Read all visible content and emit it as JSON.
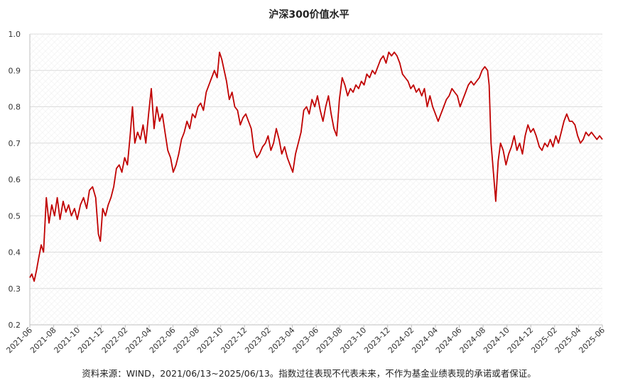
{
  "chart_data": {
    "type": "line",
    "title": "沪深300价值水平",
    "xlabel": "",
    "ylabel": "",
    "ylim": [
      0.2,
      1.0
    ],
    "yticks": [
      "0.2",
      "0.3",
      "0.4",
      "0.5",
      "0.6",
      "0.7",
      "0.8",
      "0.9",
      "1.0"
    ],
    "xlim": [
      "2021-06-13",
      "2025-06-13"
    ],
    "xticks": [
      "2021-06",
      "2021-08",
      "2021-10",
      "2021-12",
      "2022-02",
      "2022-04",
      "2022-06",
      "2022-08",
      "2022-10",
      "2022-12",
      "2023-02",
      "2023-04",
      "2023-06",
      "2023-08",
      "2023-10",
      "2023-12",
      "2024-02",
      "2024-04",
      "2024-06",
      "2024-08",
      "2024-10",
      "2024-12",
      "2025-02",
      "2025-04",
      "2025-06"
    ],
    "grid": true,
    "legend": "none",
    "line_color": "#c00000",
    "series": [
      {
        "points": [
          [
            "2021-06-13",
            0.33
          ],
          [
            "2021-06-18",
            0.34
          ],
          [
            "2021-06-24",
            0.32
          ],
          [
            "2021-06-30",
            0.35
          ],
          [
            "2021-07-05",
            0.38
          ],
          [
            "2021-07-12",
            0.42
          ],
          [
            "2021-07-18",
            0.4
          ],
          [
            "2021-07-25",
            0.55
          ],
          [
            "2021-08-01",
            0.48
          ],
          [
            "2021-08-08",
            0.53
          ],
          [
            "2021-08-15",
            0.5
          ],
          [
            "2021-08-22",
            0.55
          ],
          [
            "2021-08-29",
            0.49
          ],
          [
            "2021-09-06",
            0.54
          ],
          [
            "2021-09-13",
            0.51
          ],
          [
            "2021-09-20",
            0.53
          ],
          [
            "2021-09-27",
            0.5
          ],
          [
            "2021-10-05",
            0.52
          ],
          [
            "2021-10-12",
            0.49
          ],
          [
            "2021-10-20",
            0.53
          ],
          [
            "2021-10-28",
            0.55
          ],
          [
            "2021-11-05",
            0.52
          ],
          [
            "2021-11-12",
            0.57
          ],
          [
            "2021-11-20",
            0.58
          ],
          [
            "2021-11-28",
            0.55
          ],
          [
            "2021-12-05",
            0.45
          ],
          [
            "2021-12-10",
            0.43
          ],
          [
            "2021-12-16",
            0.52
          ],
          [
            "2021-12-23",
            0.5
          ],
          [
            "2021-12-30",
            0.53
          ],
          [
            "2022-01-06",
            0.55
          ],
          [
            "2022-01-13",
            0.58
          ],
          [
            "2022-01-20",
            0.63
          ],
          [
            "2022-01-27",
            0.64
          ],
          [
            "2022-02-03",
            0.62
          ],
          [
            "2022-02-10",
            0.66
          ],
          [
            "2022-02-17",
            0.64
          ],
          [
            "2022-02-24",
            0.72
          ],
          [
            "2022-03-02",
            0.8
          ],
          [
            "2022-03-08",
            0.7
          ],
          [
            "2022-03-15",
            0.73
          ],
          [
            "2022-03-22",
            0.71
          ],
          [
            "2022-03-29",
            0.75
          ],
          [
            "2022-04-05",
            0.7
          ],
          [
            "2022-04-12",
            0.78
          ],
          [
            "2022-04-19",
            0.85
          ],
          [
            "2022-04-26",
            0.74
          ],
          [
            "2022-05-03",
            0.8
          ],
          [
            "2022-05-10",
            0.76
          ],
          [
            "2022-05-17",
            0.78
          ],
          [
            "2022-05-24",
            0.73
          ],
          [
            "2022-05-31",
            0.68
          ],
          [
            "2022-06-07",
            0.66
          ],
          [
            "2022-06-14",
            0.62
          ],
          [
            "2022-06-21",
            0.64
          ],
          [
            "2022-06-28",
            0.67
          ],
          [
            "2022-07-05",
            0.71
          ],
          [
            "2022-07-12",
            0.73
          ],
          [
            "2022-07-19",
            0.76
          ],
          [
            "2022-07-26",
            0.74
          ],
          [
            "2022-08-02",
            0.78
          ],
          [
            "2022-08-09",
            0.77
          ],
          [
            "2022-08-16",
            0.8
          ],
          [
            "2022-08-23",
            0.81
          ],
          [
            "2022-08-30",
            0.79
          ],
          [
            "2022-09-06",
            0.84
          ],
          [
            "2022-09-13",
            0.86
          ],
          [
            "2022-09-20",
            0.88
          ],
          [
            "2022-09-27",
            0.9
          ],
          [
            "2022-10-04",
            0.88
          ],
          [
            "2022-10-10",
            0.95
          ],
          [
            "2022-10-16",
            0.93
          ],
          [
            "2022-10-22",
            0.9
          ],
          [
            "2022-10-28",
            0.87
          ],
          [
            "2022-11-04",
            0.82
          ],
          [
            "2022-11-11",
            0.84
          ],
          [
            "2022-11-18",
            0.8
          ],
          [
            "2022-11-25",
            0.79
          ],
          [
            "2022-12-02",
            0.75
          ],
          [
            "2022-12-09",
            0.77
          ],
          [
            "2022-12-16",
            0.78
          ],
          [
            "2022-12-23",
            0.76
          ],
          [
            "2022-12-30",
            0.74
          ],
          [
            "2023-01-06",
            0.68
          ],
          [
            "2023-01-13",
            0.66
          ],
          [
            "2023-01-20",
            0.67
          ],
          [
            "2023-01-28",
            0.69
          ],
          [
            "2023-02-04",
            0.7
          ],
          [
            "2023-02-11",
            0.72
          ],
          [
            "2023-02-18",
            0.68
          ],
          [
            "2023-02-25",
            0.7
          ],
          [
            "2023-03-04",
            0.74
          ],
          [
            "2023-03-11",
            0.71
          ],
          [
            "2023-03-18",
            0.67
          ],
          [
            "2023-03-25",
            0.69
          ],
          [
            "2023-04-01",
            0.66
          ],
          [
            "2023-04-08",
            0.64
          ],
          [
            "2023-04-15",
            0.62
          ],
          [
            "2023-04-22",
            0.67
          ],
          [
            "2023-04-29",
            0.7
          ],
          [
            "2023-05-06",
            0.73
          ],
          [
            "2023-05-13",
            0.79
          ],
          [
            "2023-05-20",
            0.8
          ],
          [
            "2023-05-27",
            0.78
          ],
          [
            "2023-06-03",
            0.82
          ],
          [
            "2023-06-10",
            0.8
          ],
          [
            "2023-06-17",
            0.83
          ],
          [
            "2023-06-24",
            0.79
          ],
          [
            "2023-07-01",
            0.76
          ],
          [
            "2023-07-08",
            0.8
          ],
          [
            "2023-07-15",
            0.83
          ],
          [
            "2023-07-22",
            0.78
          ],
          [
            "2023-07-29",
            0.74
          ],
          [
            "2023-08-05",
            0.72
          ],
          [
            "2023-08-12",
            0.82
          ],
          [
            "2023-08-19",
            0.88
          ],
          [
            "2023-08-26",
            0.86
          ],
          [
            "2023-09-02",
            0.83
          ],
          [
            "2023-09-09",
            0.85
          ],
          [
            "2023-09-16",
            0.84
          ],
          [
            "2023-09-23",
            0.86
          ],
          [
            "2023-09-30",
            0.85
          ],
          [
            "2023-10-07",
            0.87
          ],
          [
            "2023-10-14",
            0.86
          ],
          [
            "2023-10-21",
            0.89
          ],
          [
            "2023-10-28",
            0.88
          ],
          [
            "2023-11-04",
            0.9
          ],
          [
            "2023-11-11",
            0.89
          ],
          [
            "2023-11-18",
            0.91
          ],
          [
            "2023-11-25",
            0.93
          ],
          [
            "2023-12-02",
            0.94
          ],
          [
            "2023-12-09",
            0.92
          ],
          [
            "2023-12-16",
            0.95
          ],
          [
            "2023-12-23",
            0.94
          ],
          [
            "2023-12-30",
            0.95
          ],
          [
            "2024-01-06",
            0.94
          ],
          [
            "2024-01-13",
            0.92
          ],
          [
            "2024-01-20",
            0.89
          ],
          [
            "2024-01-27",
            0.88
          ],
          [
            "2024-02-03",
            0.87
          ],
          [
            "2024-02-10",
            0.85
          ],
          [
            "2024-02-17",
            0.86
          ],
          [
            "2024-02-24",
            0.84
          ],
          [
            "2024-03-02",
            0.85
          ],
          [
            "2024-03-09",
            0.83
          ],
          [
            "2024-03-16",
            0.85
          ],
          [
            "2024-03-23",
            0.8
          ],
          [
            "2024-03-30",
            0.83
          ],
          [
            "2024-04-06",
            0.8
          ],
          [
            "2024-04-13",
            0.78
          ],
          [
            "2024-04-20",
            0.76
          ],
          [
            "2024-04-27",
            0.78
          ],
          [
            "2024-05-04",
            0.8
          ],
          [
            "2024-05-11",
            0.82
          ],
          [
            "2024-05-18",
            0.83
          ],
          [
            "2024-05-25",
            0.85
          ],
          [
            "2024-06-01",
            0.84
          ],
          [
            "2024-06-08",
            0.83
          ],
          [
            "2024-06-15",
            0.8
          ],
          [
            "2024-06-22",
            0.82
          ],
          [
            "2024-06-29",
            0.84
          ],
          [
            "2024-07-06",
            0.86
          ],
          [
            "2024-07-13",
            0.87
          ],
          [
            "2024-07-20",
            0.86
          ],
          [
            "2024-07-27",
            0.87
          ],
          [
            "2024-08-03",
            0.88
          ],
          [
            "2024-08-10",
            0.9
          ],
          [
            "2024-08-17",
            0.91
          ],
          [
            "2024-08-24",
            0.9
          ],
          [
            "2024-08-28",
            0.86
          ],
          [
            "2024-09-02",
            0.7
          ],
          [
            "2024-09-08",
            0.62
          ],
          [
            "2024-09-14",
            0.54
          ],
          [
            "2024-09-20",
            0.65
          ],
          [
            "2024-09-26",
            0.7
          ],
          [
            "2024-10-03",
            0.68
          ],
          [
            "2024-10-10",
            0.64
          ],
          [
            "2024-10-17",
            0.67
          ],
          [
            "2024-10-24",
            0.69
          ],
          [
            "2024-10-31",
            0.72
          ],
          [
            "2024-11-07",
            0.68
          ],
          [
            "2024-11-14",
            0.7
          ],
          [
            "2024-11-21",
            0.67
          ],
          [
            "2024-11-28",
            0.72
          ],
          [
            "2024-12-05",
            0.75
          ],
          [
            "2024-12-12",
            0.73
          ],
          [
            "2024-12-19",
            0.74
          ],
          [
            "2024-12-26",
            0.72
          ],
          [
            "2025-01-03",
            0.69
          ],
          [
            "2025-01-10",
            0.68
          ],
          [
            "2025-01-17",
            0.7
          ],
          [
            "2025-01-24",
            0.69
          ],
          [
            "2025-01-31",
            0.71
          ],
          [
            "2025-02-07",
            0.69
          ],
          [
            "2025-02-14",
            0.72
          ],
          [
            "2025-02-21",
            0.7
          ],
          [
            "2025-02-28",
            0.73
          ],
          [
            "2025-03-07",
            0.76
          ],
          [
            "2025-03-14",
            0.78
          ],
          [
            "2025-03-21",
            0.76
          ],
          [
            "2025-03-28",
            0.76
          ],
          [
            "2025-04-04",
            0.75
          ],
          [
            "2025-04-11",
            0.72
          ],
          [
            "2025-04-18",
            0.7
          ],
          [
            "2025-04-25",
            0.71
          ],
          [
            "2025-05-02",
            0.73
          ],
          [
            "2025-05-09",
            0.72
          ],
          [
            "2025-05-16",
            0.73
          ],
          [
            "2025-05-23",
            0.72
          ],
          [
            "2025-05-30",
            0.71
          ],
          [
            "2025-06-06",
            0.72
          ],
          [
            "2025-06-13",
            0.71
          ]
        ]
      }
    ]
  },
  "footnote": "资料来源：WIND，2021/06/13~2025/06/13。指数过往表现不代表未来，不作为基金业绩表现的承诺或者保证。"
}
